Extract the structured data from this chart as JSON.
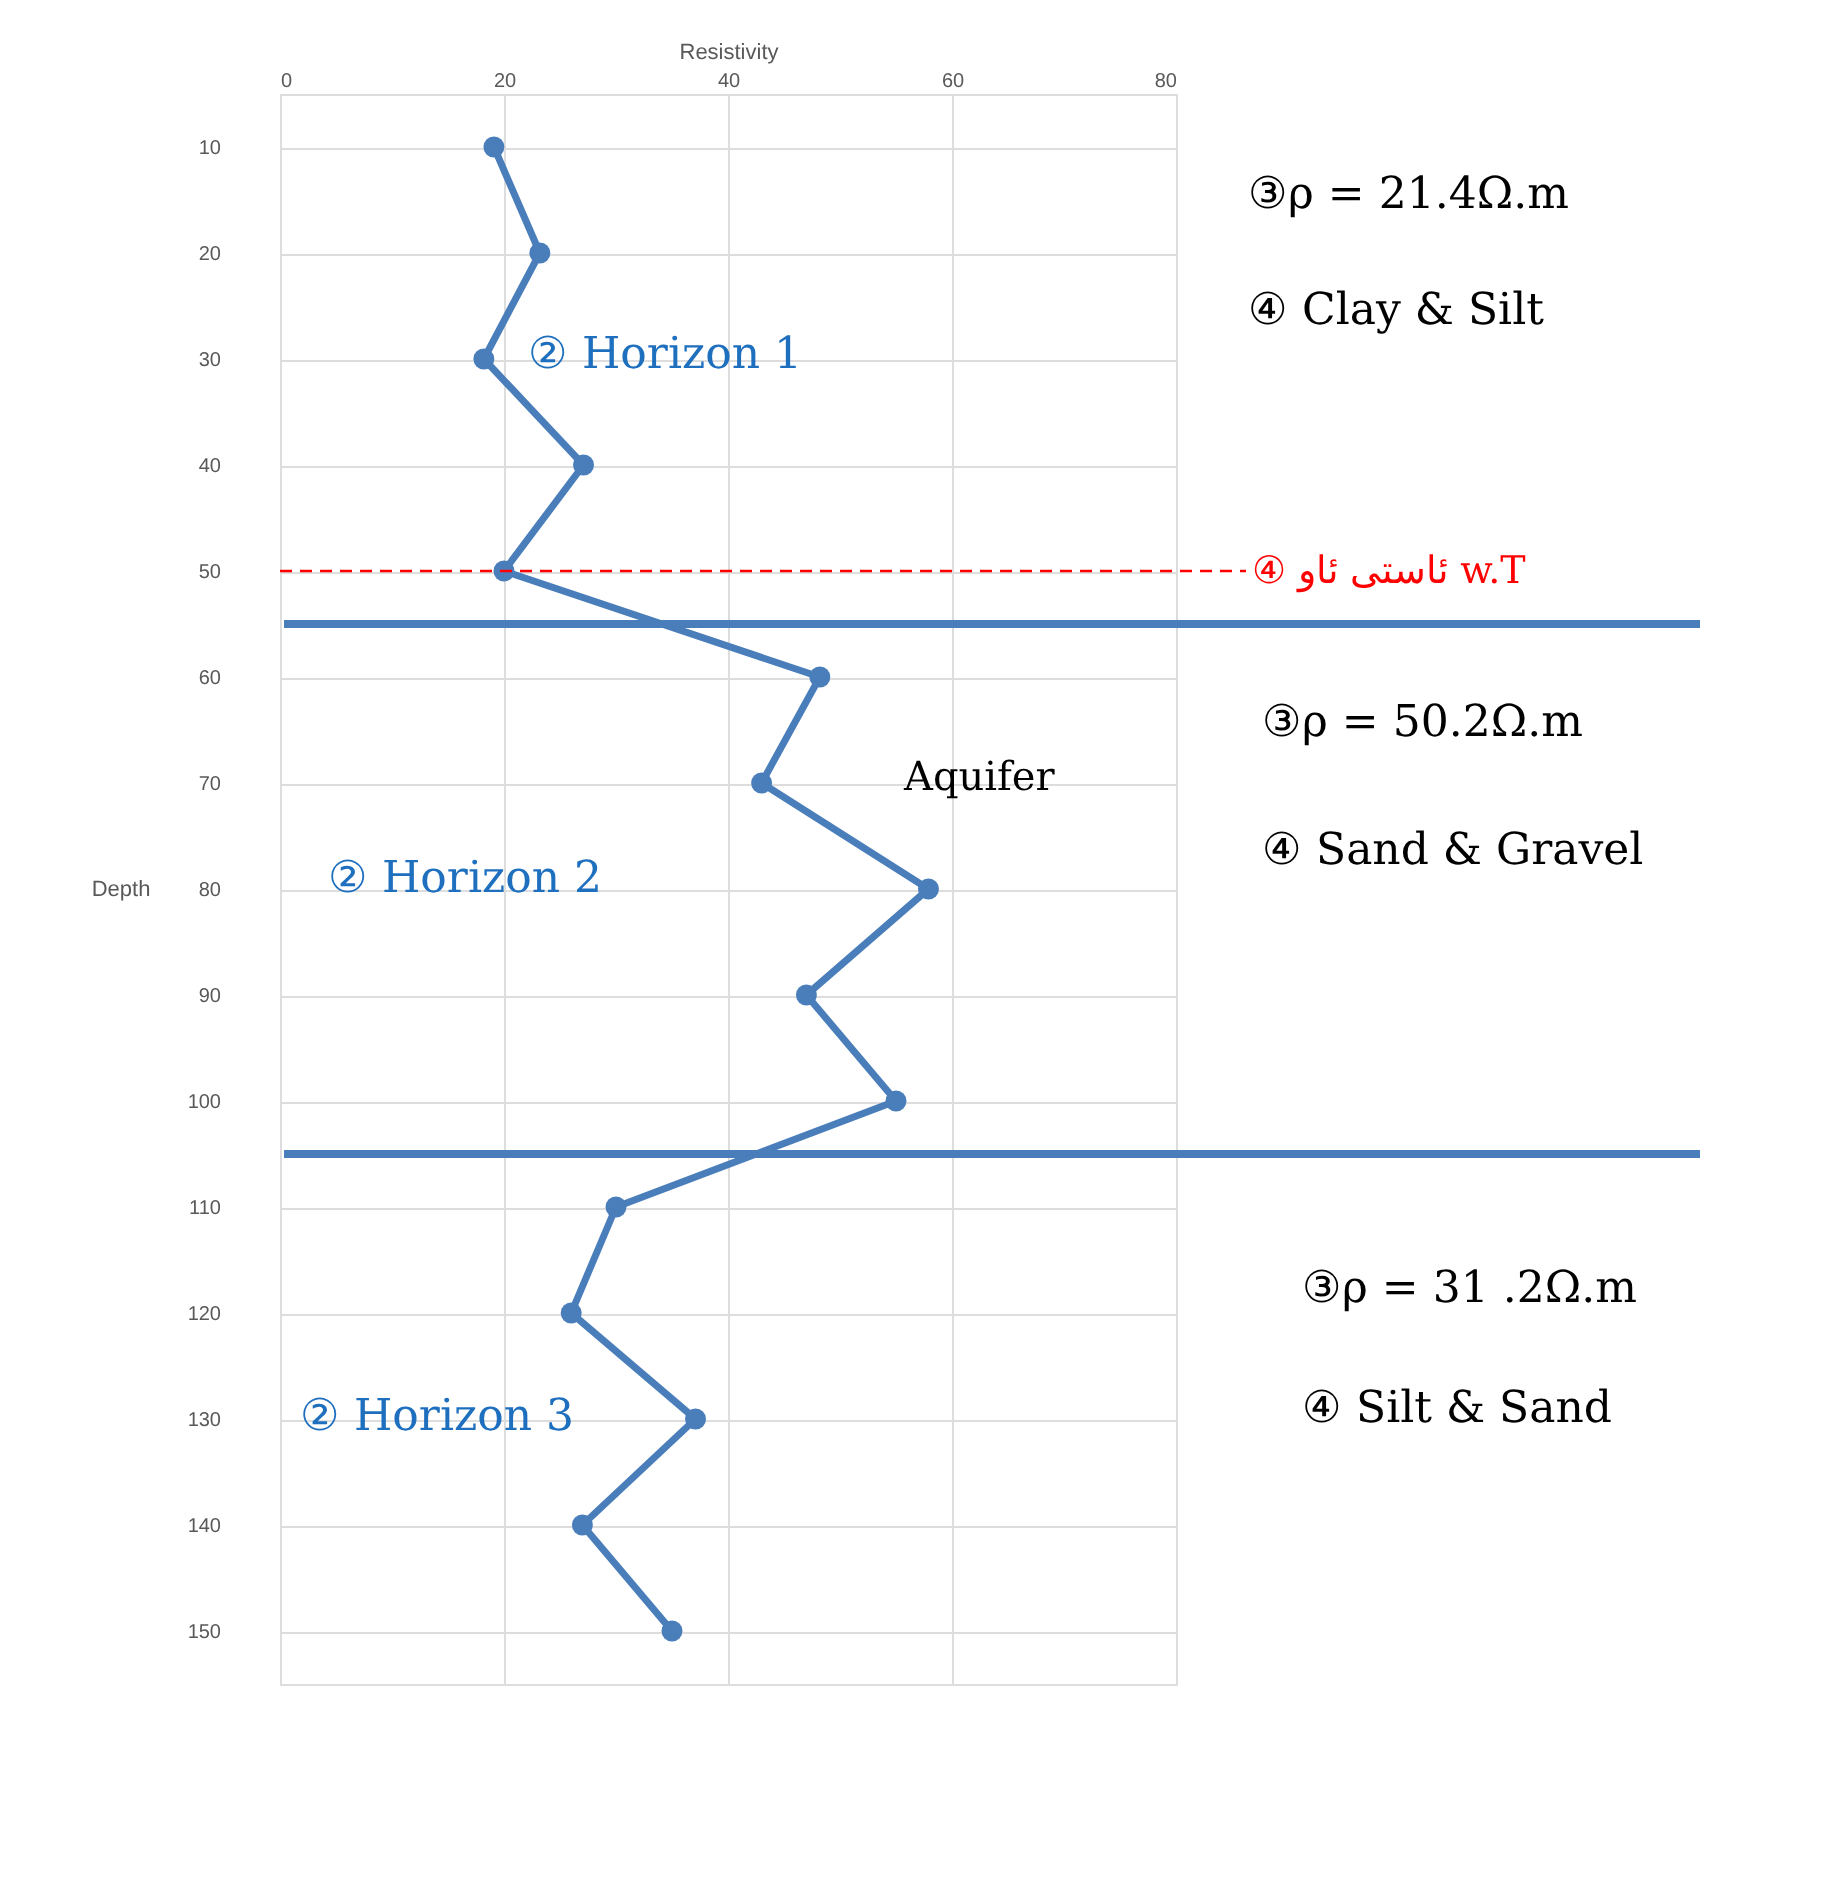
{
  "chart_data": {
    "type": "line",
    "xlabel": "Resistivity",
    "ylabel": "Depth",
    "x": [
      10,
      20,
      30,
      40,
      50,
      60,
      70,
      80,
      90,
      100,
      110,
      120,
      130,
      140,
      150
    ],
    "series": [
      {
        "color": "#4a7ebb",
        "values": [
          19.1,
          23.2,
          18.2,
          27.1,
          20,
          48.2,
          43,
          57.9,
          47,
          55,
          30,
          26,
          37.1,
          27,
          35
        ]
      }
    ],
    "orientation": "horizontal",
    "xlim": [
      0,
      80
    ],
    "xticks": [
      0,
      20,
      40,
      60,
      80
    ],
    "ylim": [
      155,
      5
    ],
    "yticks": [
      10,
      20,
      30,
      40,
      50,
      60,
      70,
      80,
      90,
      100,
      110,
      120,
      130,
      140,
      150
    ],
    "grid": true,
    "marker": "circle",
    "line_style": "solid",
    "ref_lines": [
      {
        "axis": "y",
        "value": 50,
        "label": "④ ئاستی ئاو w.T",
        "color": "#ff0000",
        "line_style": "dashed"
      },
      {
        "axis": "y",
        "value": 55,
        "color": "#4a7ebb",
        "line_style": "solid"
      },
      {
        "axis": "y",
        "value": 105,
        "color": "#4a7ebb",
        "line_style": "solid"
      }
    ],
    "annotations": [
      "② Horizon 1",
      "② Horizon 2",
      "② Horizon 3",
      "Aquifer",
      "③ρ = 21.4Ω.m",
      "④ Clay & Silt",
      "③ρ = 50.2Ω.m",
      "④ Sand & Gravel",
      "③ρ = 31 .2Ω.m",
      "④ Silt & Sand"
    ]
  }
}
